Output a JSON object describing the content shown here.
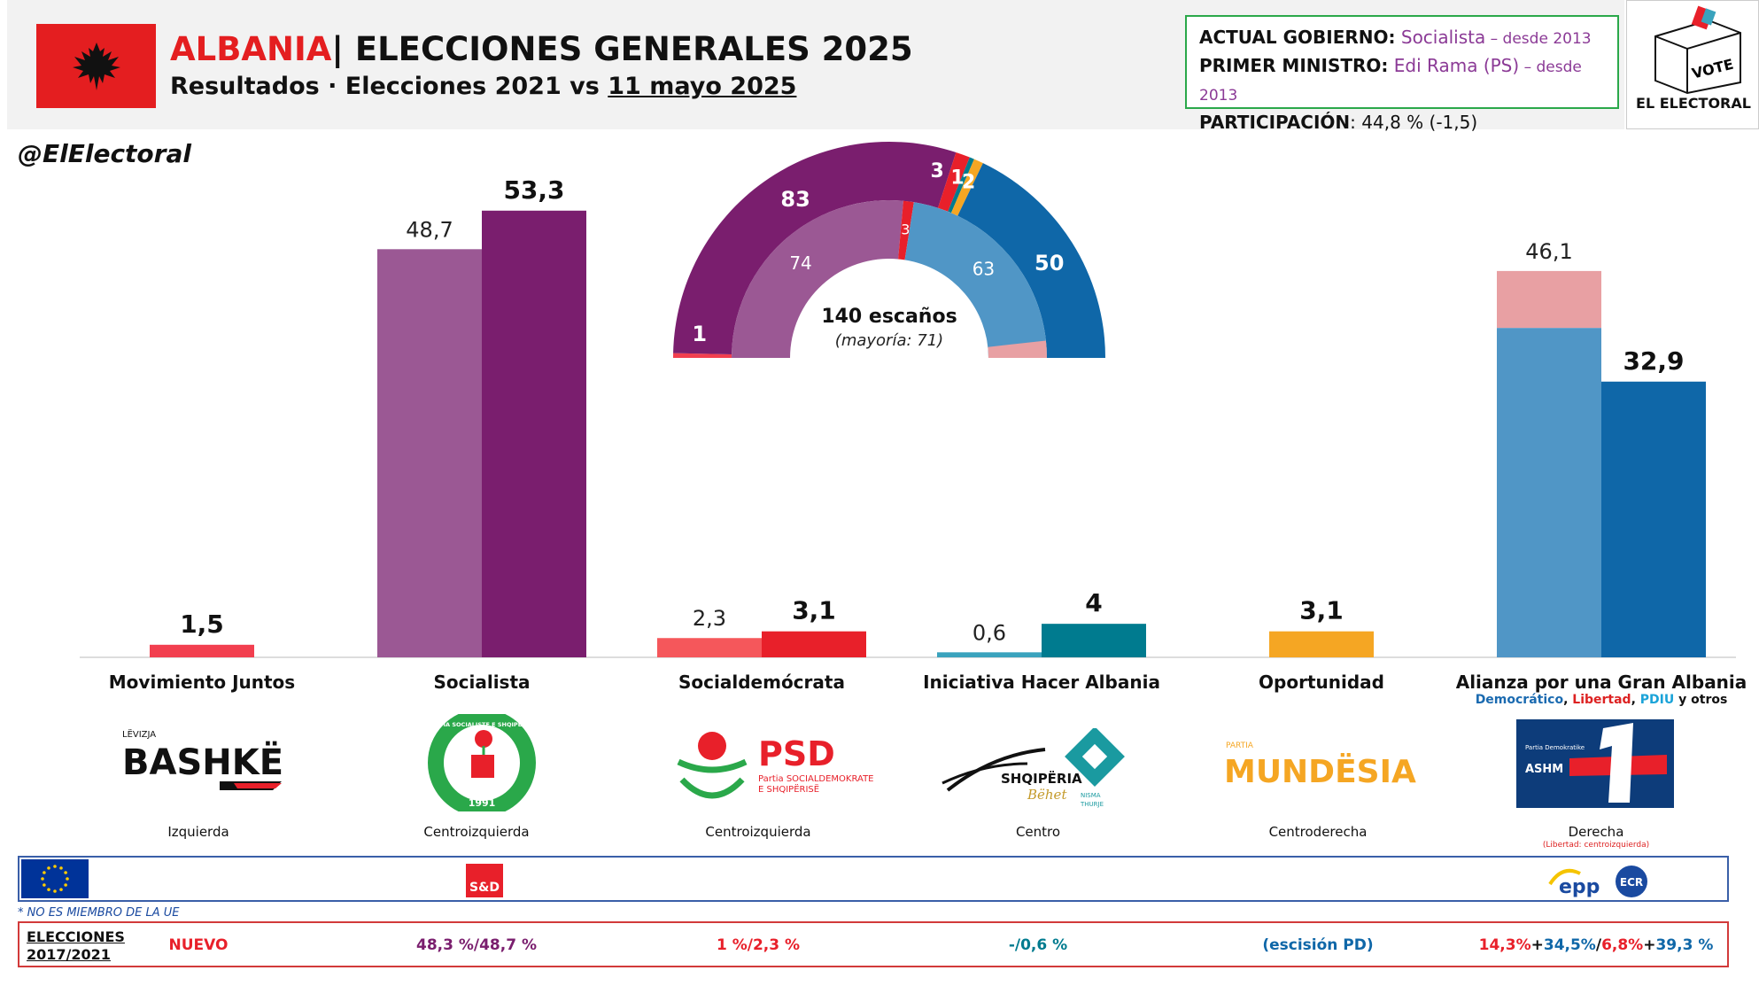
{
  "header": {
    "country": "ALBANIA",
    "title_rest": "| ELECCIONES GENERALES 2025",
    "subtitle_prefix": "Resultados · Elecciones 2021 vs ",
    "subtitle_date": "11 mayo 2025",
    "handle": "@ElElectoral"
  },
  "info": {
    "gov_label": "ACTUAL GOBIERNO:",
    "gov_value": "Socialista",
    "gov_since": " – desde 2013",
    "pm_label": "PRIMER MINISTRO:",
    "pm_value": "Edi Rama (PS)",
    "pm_since": " – desde 2013",
    "turnout_label": "PARTICIPACIÓN",
    "turnout_value": ": 44,8 % (-1,5)"
  },
  "logo": {
    "vote": "VOTE",
    "brand": "EL ELECTORAL"
  },
  "colors": {
    "socialist_2025": "#7a1e6e",
    "socialist_2021": "#9b5894",
    "juntos": "#f23f4f",
    "psd_2025": "#e8202a",
    "psd_2021": "#f5575b",
    "hacer_2025": "#007b8f",
    "hacer_2021": "#3aa3bd",
    "oportunidad": "#f5a623",
    "alianza_2025": "#0f67a8",
    "alianza_2021": "#5096c6",
    "alianza_2021_lib": "#e8a0a3",
    "eu_blue": "#003399",
    "green": "#2aa84a"
  },
  "chart_data": {
    "type": "bar",
    "ylim": [
      0,
      56
    ],
    "categories": [
      "Movimiento Juntos",
      "Socialista",
      "Socialdemócrata",
      "Iniciativa Hacer Albania",
      "Oportunidad",
      "Alianza por una Gran Albania"
    ],
    "series": [
      {
        "name": "2021",
        "values": [
          null,
          48.7,
          2.3,
          0.6,
          null,
          46.1
        ],
        "labels": [
          "",
          "48,7",
          "2,3",
          "0,6",
          "",
          "46,1"
        ]
      },
      {
        "name": "2025",
        "values": [
          1.5,
          53.3,
          3.1,
          4.0,
          3.1,
          32.9
        ],
        "labels": [
          "1,5",
          "53,3",
          "3,1",
          "4",
          "3,1",
          "32,9"
        ]
      }
    ],
    "alianza_2021_split": {
      "democratico": 39.3,
      "libertad_otros": 6.8
    },
    "seats": {
      "type": "pie",
      "title": "140 escaños",
      "subtitle": "(mayoría: 71)",
      "outer_2025": [
        {
          "label": "1",
          "value": 1,
          "color": "#f23f4f"
        },
        {
          "label": "83",
          "value": 83,
          "color": "#7a1e6e"
        },
        {
          "label": "3",
          "value": 3,
          "color": "#e8202a"
        },
        {
          "label": "1",
          "value": 1,
          "color": "#007b8f"
        },
        {
          "label": "2",
          "value": 2,
          "color": "#f5a623"
        },
        {
          "label": "50",
          "value": 50,
          "color": "#0f67a8"
        }
      ],
      "inner_2021": [
        {
          "label": "",
          "value": 0,
          "color": "#f23f4f"
        },
        {
          "label": "74",
          "value": 74,
          "color": "#9b5894"
        },
        {
          "label": "3",
          "value": 3,
          "color": "#e8202a"
        },
        {
          "label": "63",
          "value": 63,
          "color": "#5096c6"
        }
      ]
    }
  },
  "parties": [
    {
      "name": "Movimiento Juntos",
      "ideology": "Izquierda",
      "prev": "NUEVO",
      "prev_color": "#e8202a",
      "logo": "BASHKË",
      "logo_small": "LËVIZJA"
    },
    {
      "name": "Socialista",
      "ideology": "Centroizquierda",
      "prev": "48,3 %/48,7 %",
      "prev_color": "#7a1e6e",
      "logo_year": "1991",
      "logo_ring": "PARTIA SOCIALISTE E SHQIPËRISË"
    },
    {
      "name": "Socialdemócrata",
      "ideology": "Centroizquierda",
      "prev": "1 %/2,3 %",
      "prev_color": "#e8202a",
      "logo": "PSD",
      "logo_line1": "Partia SOCIALDEMOKRATE",
      "logo_line2": "E SHQIPËRISË"
    },
    {
      "name": "Iniciativa Hacer Albania",
      "ideology": "Centro",
      "prev": "-/0,6 %",
      "prev_color": "#007b8f",
      "logo": "SHQIPËRIA",
      "logo_script": "Bëhet",
      "logo_nisma": "NISMA",
      "logo_thurje": "THURJE"
    },
    {
      "name": "Oportunidad",
      "ideology": "Centroderecha",
      "prev": "(escisión PD)",
      "prev_color": "#0f67a8",
      "logo": "MUNDËSIA",
      "logo_small": "PARTIA"
    },
    {
      "name": "Alianza por una Gran Albania",
      "ideology": "Derecha",
      "ideology_note": "(Libertad: centroizquierda)",
      "logo": "ASHM",
      "logo_small": "Partia Demokratike"
    }
  ],
  "alianza_sub": {
    "democratico": "Democrático",
    "sep1": ", ",
    "libertad": "Libertad",
    "sep2": ", ",
    "pdiu": "PDIU",
    "rest": " y otros"
  },
  "alianza_prev": {
    "p1": "14,3%",
    "plus1": "+",
    "p2": "34,5%",
    "slash": "/",
    "p3": "6,8%",
    "plus2": "+",
    "p4": "39,3 %"
  },
  "eu": {
    "sd": "S&D",
    "epp": "epp",
    "ecr": "ECR",
    "note": "* NO ES MIEMBRO DE LA UE"
  },
  "prev_label": {
    "line1": "ELECCIONES",
    "line2": "2017/2021"
  }
}
